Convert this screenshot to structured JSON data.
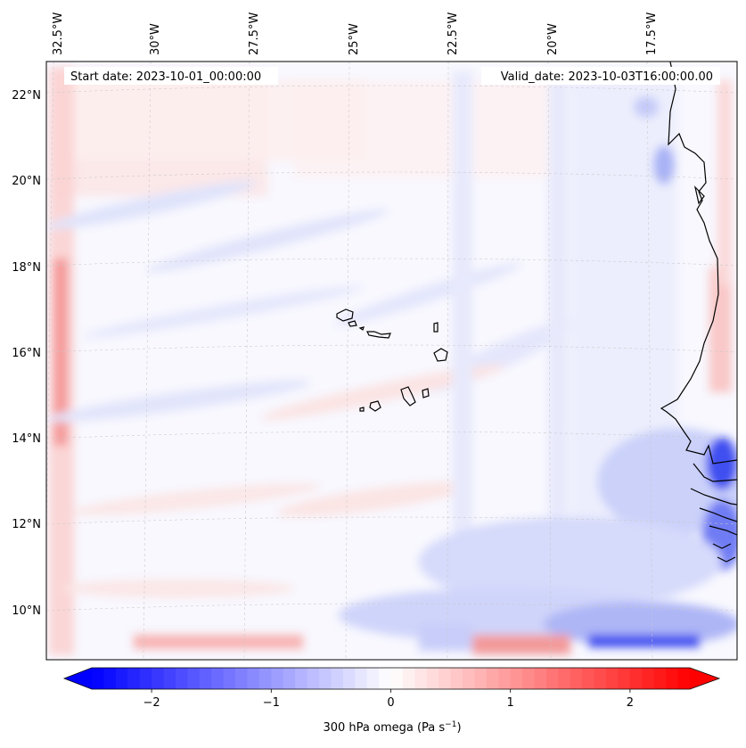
{
  "map": {
    "start_label": "Start date: 2023-10-01_00:00:00",
    "valid_label": "Valid_date: 2023-10-03T16:00:00.00",
    "lon_labels": [
      "32.5°W",
      "30°W",
      "27.5°W",
      "25°W",
      "22.5°W",
      "20°W",
      "17.5°W"
    ],
    "lat_labels": [
      "22°N",
      "20°N",
      "18°N",
      "16°N",
      "14°N",
      "12°N",
      "10°N"
    ],
    "field": "300 hPa omega",
    "region": "Eastern tropical Atlantic, Cabo Verde islands and West African coast"
  },
  "colorbar": {
    "label_main": "300 hPa omega (Pa s",
    "label_sup": "−1",
    "label_close": ")",
    "ticks": [
      "−2",
      "−1",
      "0",
      "1",
      "2"
    ],
    "tick_values": [
      -2,
      -1,
      0,
      1,
      2
    ],
    "min": -2.5,
    "max": 2.5,
    "colormap": "bwr",
    "extend": "both"
  },
  "colors": {
    "negative": "#0000ff",
    "positive": "#ff0000",
    "neutral": "#ffffff",
    "coastline": "#000000",
    "gridline": "#c8c8c8"
  }
}
